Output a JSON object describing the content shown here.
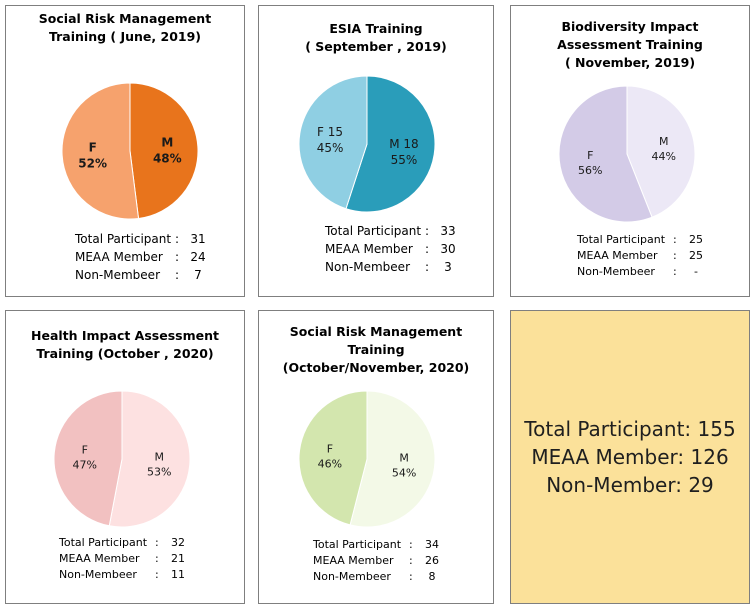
{
  "charts": [
    {
      "title_lines": [
        "Social Risk Management",
        "Training ( June, 2019)"
      ],
      "stats": [
        {
          "label": "Total Participant",
          "value": "31"
        },
        {
          "label": "MEAA Member",
          "value": "24"
        },
        {
          "label": "Non-Membeer",
          "value": "7"
        }
      ]
    },
    {
      "title_lines": [
        "ESIA Training",
        "( September , 2019)"
      ],
      "stats": [
        {
          "label": "Total Participant",
          "value": "33"
        },
        {
          "label": "MEAA Member",
          "value": "30"
        },
        {
          "label": "Non-Membeer",
          "value": "3"
        }
      ]
    },
    {
      "title_lines": [
        "Biodiversity Impact",
        "Assessment Training",
        "( November, 2019)"
      ],
      "stats": [
        {
          "label": "Total Participant",
          "value": "25"
        },
        {
          "label": "MEAA Member",
          "value": "25"
        },
        {
          "label": "Non-Membeer",
          "value": "-"
        }
      ]
    },
    {
      "title_lines": [
        "Health Impact Assessment",
        "Training (October , 2020)"
      ],
      "stats": [
        {
          "label": "Total Participant",
          "value": "32"
        },
        {
          "label": "MEAA Member",
          "value": "21"
        },
        {
          "label": "Non-Membeer",
          "value": "11"
        }
      ]
    },
    {
      "title_lines": [
        "Social Risk Management",
        "Training",
        "(October/November, 2020)"
      ],
      "stats": [
        {
          "label": "Total Participant",
          "value": "34"
        },
        {
          "label": "MEAA Member",
          "value": "26"
        },
        {
          "label": "Non-Membeer",
          "value": "8"
        }
      ]
    }
  ],
  "summary": {
    "total": "Total Participant: 155",
    "member": "MEAA Member: 126",
    "non_member": "Non-Member: 29"
  },
  "chart_data": [
    {
      "type": "pie",
      "title": "Social Risk Management Training ( June, 2019)",
      "slices": [
        {
          "label": "M",
          "value_label": "48%",
          "value": 48,
          "color": "#e8741c"
        },
        {
          "label": "F",
          "value_label": "52%",
          "value": 52,
          "color": "#f6a26d"
        }
      ]
    },
    {
      "type": "pie",
      "title": "ESIA Training ( September , 2019)",
      "slices": [
        {
          "label": "M 18",
          "value_label": "55%",
          "value": 55,
          "color": "#2a9dba"
        },
        {
          "label": "F 15",
          "value_label": "45%",
          "value": 45,
          "color": "#8fcfe3"
        }
      ]
    },
    {
      "type": "pie",
      "title": "Biodiversity Impact Assessment Training ( November, 2019)",
      "slices": [
        {
          "label": "M",
          "value_label": "44%",
          "value": 44,
          "color": "#ece8f6"
        },
        {
          "label": "F",
          "value_label": "56%",
          "value": 56,
          "color": "#d3cbe7"
        }
      ]
    },
    {
      "type": "pie",
      "title": "Health Impact Assessment Training (October , 2020)",
      "slices": [
        {
          "label": "M",
          "value_label": "53%",
          "value": 53,
          "color": "#fde1e1"
        },
        {
          "label": "F",
          "value_label": "47%",
          "value": 47,
          "color": "#f2c1c1"
        }
      ]
    },
    {
      "type": "pie",
      "title": "Social Risk Management Training (October/November, 2020)",
      "slices": [
        {
          "label": "M",
          "value_label": "54%",
          "value": 54,
          "color": "#f3f9e7"
        },
        {
          "label": "F",
          "value_label": "46%",
          "value": 46,
          "color": "#d3e6ae"
        }
      ]
    }
  ]
}
